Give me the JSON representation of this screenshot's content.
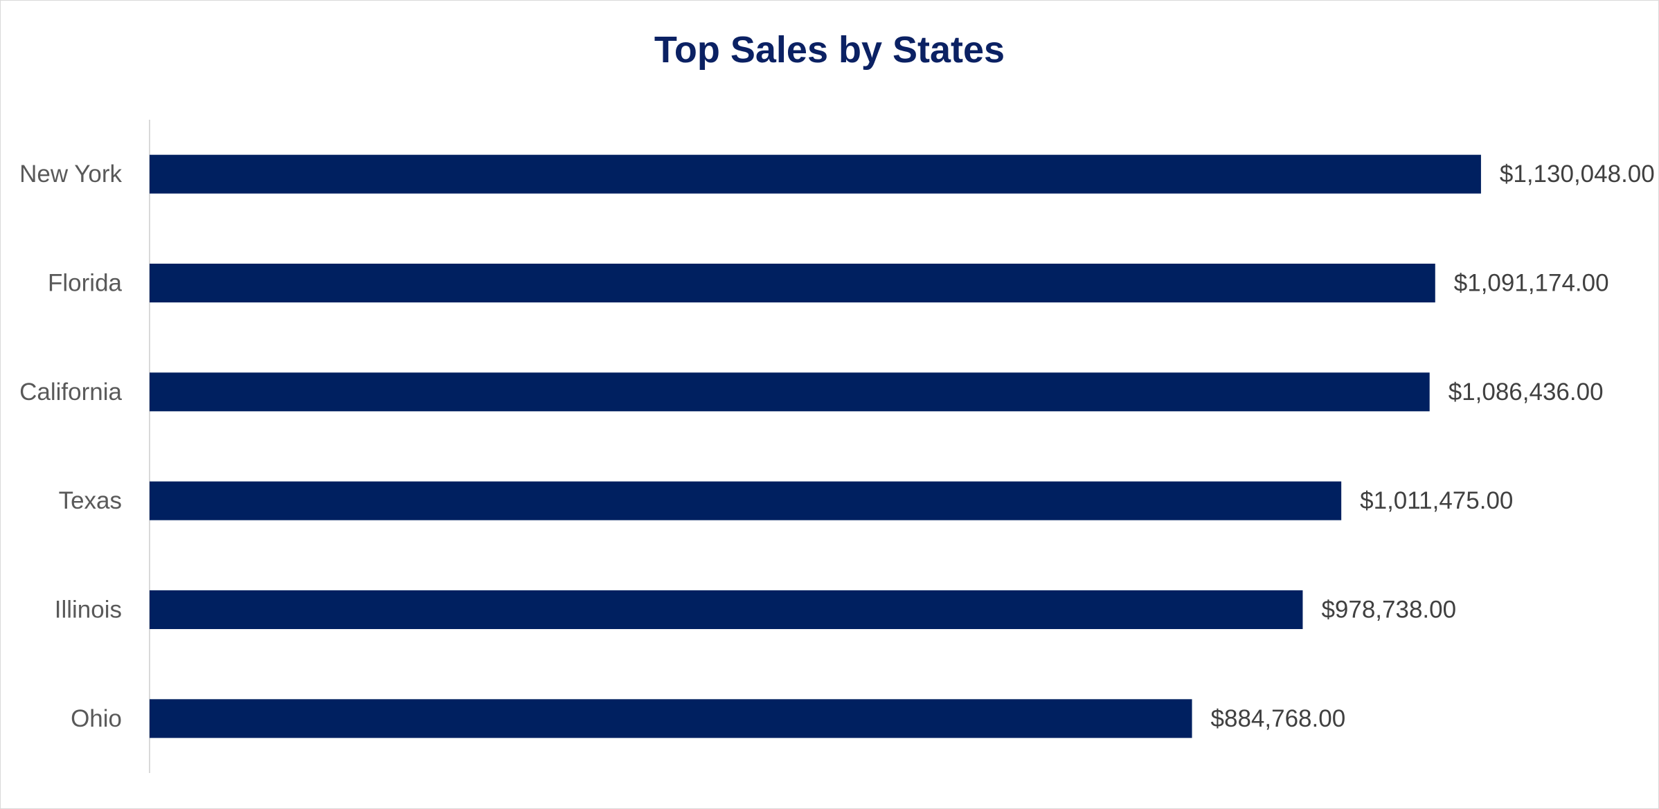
{
  "chart_data": {
    "type": "bar",
    "orientation": "horizontal",
    "title": "Top Sales by States",
    "categories": [
      "New York",
      "Florida",
      "California",
      "Texas",
      "Illinois",
      "Ohio"
    ],
    "values": [
      1130048,
      1091174,
      1086436,
      1011475,
      978738,
      884768
    ],
    "data_labels": [
      "$1,130,048.00",
      "$1,091,174.00",
      "$1,086,436.00",
      "$1,011,475.00",
      "$978,738.00",
      "$884,768.00"
    ],
    "xlim": [
      0,
      1230000
    ],
    "grid": false,
    "legend": "none",
    "bar_color": "#002060"
  }
}
